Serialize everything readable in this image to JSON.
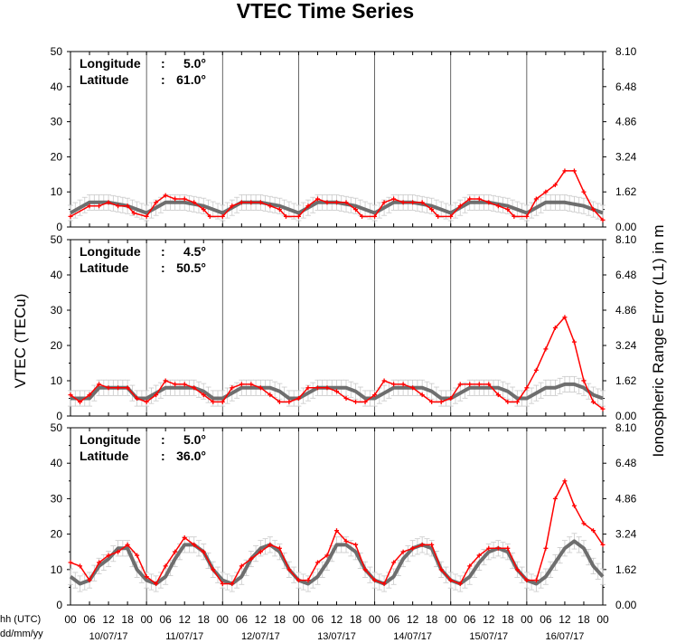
{
  "title": "VTEC Time Series",
  "ylabel_left": "VTEC (TECu)",
  "ylabel_right": "Ionospheric Range Error (L1) in m",
  "xlabel_line1": "hh (UTC)",
  "xlabel_line2": "dd/mm/yy",
  "colors": {
    "observed": "#ff0000",
    "reference": "#6e6e6e",
    "errorbar": "#c8c8c8",
    "axis": "#000000"
  },
  "chart_data": {
    "type": "line",
    "title": "VTEC Time Series",
    "x_unit": "hours since 10/07/17 00 UTC",
    "hour_tick_labels": [
      "00",
      "06",
      "12",
      "18"
    ],
    "final_tick_label": "00",
    "day_labels": [
      "10/07/17",
      "11/07/17",
      "12/07/17",
      "13/07/17",
      "14/07/17",
      "15/07/17",
      "16/07/17"
    ],
    "xlim": [
      0,
      168
    ],
    "grid": "vertical day separators",
    "legend": "none",
    "panels": [
      {
        "longitude_label": "Longitude",
        "longitude_value": "5.0°",
        "latitude_label": "Latitude",
        "latitude_value": "61.0°",
        "ylim": [
          0,
          50
        ],
        "yticks": [
          "0",
          "10",
          "20",
          "30",
          "40",
          "50"
        ],
        "right_ticks": [
          "0.00",
          "1.62",
          "3.24",
          "4.86",
          "6.48",
          "8.10"
        ],
        "series": [
          {
            "role": "observed",
            "color": "#ff0000",
            "x": [
              0,
              6,
              9,
              12,
              15,
              18,
              20,
              24,
              27,
              30,
              33,
              36,
              39,
              42,
              44,
              48,
              51,
              54,
              57,
              60,
              63,
              66,
              68,
              72,
              75,
              78,
              81,
              84,
              87,
              90,
              92,
              96,
              99,
              102,
              105,
              108,
              111,
              114,
              116,
              120,
              123,
              126,
              129,
              132,
              135,
              138,
              140,
              144,
              147,
              150,
              153,
              156,
              159,
              162,
              165,
              168
            ],
            "y": [
              3,
              6,
              6,
              7,
              6,
              6,
              4,
              3,
              7,
              9,
              8,
              8,
              7,
              5,
              3,
              3,
              6,
              7,
              7,
              7,
              6,
              5,
              3,
              3,
              6,
              8,
              7,
              7,
              7,
              5,
              3,
              3,
              7,
              8,
              7,
              7,
              7,
              5,
              3,
              3,
              6,
              8,
              8,
              7,
              6,
              5,
              3,
              3,
              8,
              10,
              12,
              16,
              16,
              10,
              5,
              2
            ]
          },
          {
            "role": "reference",
            "color": "#6e6e6e",
            "x": [
              0,
              6,
              12,
              18,
              24,
              30,
              36,
              42,
              48,
              54,
              60,
              66,
              72,
              78,
              84,
              90,
              96,
              102,
              108,
              114,
              120,
              126,
              132,
              138,
              144,
              150,
              156,
              162,
              168
            ],
            "y": [
              4,
              7,
              7,
              6,
              4,
              7,
              7,
              6,
              4,
              7,
              7,
              6,
              4,
              7,
              7,
              6,
              4,
              7,
              7,
              6,
              4,
              7,
              7,
              6,
              4,
              7,
              7,
              6,
              4
            ]
          }
        ]
      },
      {
        "longitude_label": "Longitude",
        "longitude_value": "4.5°",
        "latitude_label": "Latitude",
        "latitude_value": "50.5°",
        "ylim": [
          0,
          50
        ],
        "yticks": [
          "0",
          "10",
          "20",
          "30",
          "40",
          "50"
        ],
        "right_ticks": [
          "0.00",
          "1.62",
          "3.24",
          "4.86",
          "6.48",
          "8.10"
        ],
        "series": [
          {
            "role": "observed",
            "color": "#ff0000",
            "x": [
              0,
              3,
              6,
              9,
              12,
              15,
              18,
              21,
              24,
              27,
              30,
              33,
              36,
              39,
              42,
              45,
              48,
              51,
              54,
              57,
              60,
              63,
              66,
              69,
              72,
              75,
              78,
              81,
              84,
              87,
              90,
              93,
              96,
              99,
              102,
              105,
              108,
              111,
              114,
              117,
              120,
              123,
              126,
              129,
              132,
              135,
              138,
              141,
              144,
              147,
              150,
              153,
              156,
              159,
              162,
              165,
              168
            ],
            "y": [
              6,
              4,
              6,
              9,
              8,
              8,
              8,
              5,
              4,
              6,
              10,
              9,
              9,
              8,
              6,
              4,
              4,
              8,
              9,
              9,
              8,
              6,
              4,
              4,
              5,
              8,
              8,
              8,
              7,
              5,
              4,
              4,
              6,
              10,
              9,
              9,
              8,
              6,
              4,
              4,
              5,
              9,
              9,
              9,
              9,
              6,
              4,
              4,
              8,
              13,
              19,
              25,
              28,
              21,
              10,
              4,
              2
            ]
          },
          {
            "role": "reference",
            "color": "#6e6e6e",
            "x": [
              0,
              6,
              9,
              12,
              15,
              18,
              21,
              24,
              30,
              33,
              36,
              39,
              42,
              45,
              48,
              54,
              57,
              60,
              63,
              66,
              69,
              72,
              78,
              81,
              84,
              87,
              90,
              93,
              96,
              102,
              105,
              108,
              111,
              114,
              117,
              120,
              126,
              129,
              132,
              135,
              138,
              141,
              144,
              150,
              153,
              156,
              159,
              162,
              165,
              168
            ],
            "y": [
              5,
              5,
              8,
              8,
              8,
              8,
              5,
              5,
              8,
              8,
              8,
              8,
              7,
              5,
              5,
              8,
              8,
              8,
              8,
              7,
              5,
              5,
              8,
              8,
              8,
              8,
              7,
              5,
              5,
              8,
              8,
              8,
              8,
              7,
              5,
              5,
              8,
              8,
              8,
              8,
              7,
              5,
              5,
              8,
              8,
              9,
              9,
              8,
              6,
              5
            ]
          }
        ]
      },
      {
        "longitude_label": "Longitude",
        "longitude_value": "5.0°",
        "latitude_label": "Latitude",
        "latitude_value": "36.0°",
        "ylim": [
          0,
          50
        ],
        "yticks": [
          "0",
          "10",
          "20",
          "30",
          "40",
          "50"
        ],
        "right_ticks": [
          "0.00",
          "1.62",
          "3.24",
          "4.86",
          "6.48",
          "8.10"
        ],
        "series": [
          {
            "role": "observed",
            "color": "#ff0000",
            "x": [
              0,
              3,
              6,
              9,
              12,
              15,
              18,
              21,
              24,
              27,
              30,
              33,
              36,
              39,
              42,
              45,
              48,
              51,
              54,
              57,
              60,
              63,
              66,
              69,
              72,
              75,
              78,
              81,
              84,
              87,
              90,
              93,
              96,
              99,
              102,
              105,
              108,
              111,
              114,
              117,
              120,
              123,
              126,
              129,
              132,
              135,
              138,
              141,
              144,
              147,
              150,
              153,
              156,
              159,
              162,
              165,
              168
            ],
            "y": [
              12,
              11,
              7,
              12,
              14,
              15,
              17,
              14,
              8,
              6,
              11,
              15,
              19,
              17,
              15,
              10,
              6,
              6,
              11,
              13,
              15,
              17,
              16,
              10,
              7,
              7,
              12,
              14,
              21,
              18,
              17,
              10,
              7,
              6,
              12,
              15,
              16,
              17,
              17,
              10,
              7,
              6,
              11,
              14,
              16,
              16,
              16,
              10,
              7,
              7,
              16,
              30,
              35,
              28,
              23,
              21,
              17
            ]
          },
          {
            "role": "reference",
            "color": "#6e6e6e",
            "x": [
              0,
              3,
              6,
              9,
              12,
              15,
              18,
              21,
              24,
              27,
              30,
              33,
              36,
              39,
              42,
              45,
              48,
              51,
              54,
              57,
              60,
              63,
              66,
              69,
              72,
              75,
              78,
              81,
              84,
              87,
              90,
              93,
              96,
              99,
              102,
              105,
              108,
              111,
              114,
              117,
              120,
              123,
              126,
              129,
              132,
              135,
              138,
              141,
              144,
              147,
              150,
              153,
              156,
              159,
              162,
              165,
              168
            ],
            "y": [
              8,
              6,
              7,
              11,
              13,
              16,
              16,
              10,
              7,
              6,
              8,
              13,
              17,
              17,
              15,
              10,
              7,
              6,
              8,
              13,
              16,
              17,
              15,
              10,
              7,
              6,
              8,
              12,
              17,
              17,
              15,
              10,
              7,
              6,
              8,
              13,
              16,
              17,
              16,
              10,
              7,
              6,
              8,
              12,
              15,
              16,
              15,
              10,
              7,
              6,
              8,
              12,
              16,
              18,
              16,
              11,
              8
            ]
          }
        ]
      }
    ]
  }
}
